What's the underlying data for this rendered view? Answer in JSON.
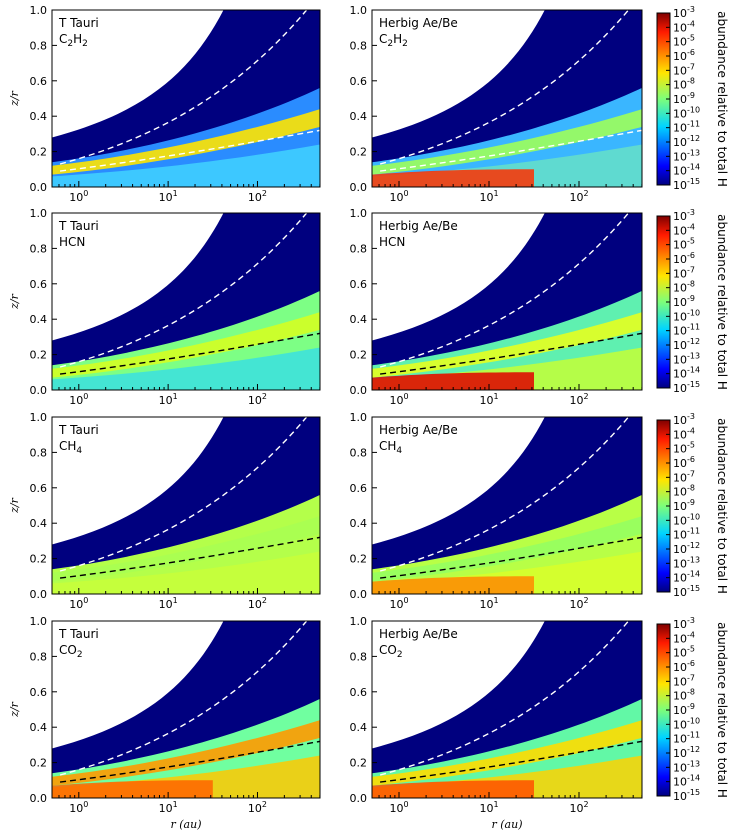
{
  "figure": {
    "x_axis_title": "r (au)",
    "y_axis_title": "z/r",
    "colorbar_title": "abundance relative to total H",
    "colorbar_ticks": [
      "10-3",
      "10-4",
      "10-5",
      "10-6",
      "10-7",
      "10-8",
      "10-9",
      "10-10",
      "10-11",
      "10-12",
      "10-13",
      "10-14",
      "10-15"
    ],
    "colors": {
      "background_dark": "#00007f",
      "dashed_upper": "#ffffff",
      "dashed_lower_dark": "#000000"
    }
  },
  "chart_data": [
    {
      "type": "heatmap",
      "panel": "row1-left",
      "title_lines": [
        "T Tauri",
        "C2H2"
      ],
      "x_ticks": [
        "10^0",
        "10^1",
        "10^2"
      ],
      "y_ticks": [
        "0.0",
        "0.2",
        "0.4",
        "0.6",
        "0.8",
        "1.0"
      ],
      "xlim_log": [
        -0.3,
        2.7
      ],
      "ylim": [
        0,
        1
      ],
      "lower_dashed_color": "#ffffff",
      "zlim_log": [
        -15,
        -3
      ]
    },
    {
      "type": "heatmap",
      "panel": "row1-right",
      "title_lines": [
        "Herbig Ae/Be",
        "C2H2"
      ],
      "x_ticks": [
        "10^0",
        "10^1",
        "10^2"
      ],
      "y_ticks": [
        "0.0",
        "0.2",
        "0.4",
        "0.6",
        "0.8",
        "1.0"
      ],
      "xlim_log": [
        -0.3,
        2.7
      ],
      "ylim": [
        0,
        1
      ],
      "lower_dashed_color": "#ffffff",
      "zlim_log": [
        -15,
        -3
      ]
    },
    {
      "type": "heatmap",
      "panel": "row2-left",
      "title_lines": [
        "T Tauri",
        "HCN"
      ],
      "x_ticks": [
        "10^0",
        "10^1",
        "10^2"
      ],
      "y_ticks": [
        "0.0",
        "0.2",
        "0.4",
        "0.6",
        "0.8",
        "1.0"
      ],
      "xlim_log": [
        -0.3,
        2.7
      ],
      "ylim": [
        0,
        1
      ],
      "lower_dashed_color": "#000000",
      "zlim_log": [
        -15,
        -3
      ]
    },
    {
      "type": "heatmap",
      "panel": "row2-right",
      "title_lines": [
        "Herbig Ae/Be",
        "HCN"
      ],
      "x_ticks": [
        "10^0",
        "10^1",
        "10^2"
      ],
      "y_ticks": [
        "0.0",
        "0.2",
        "0.4",
        "0.6",
        "0.8",
        "1.0"
      ],
      "xlim_log": [
        -0.3,
        2.7
      ],
      "ylim": [
        0,
        1
      ],
      "lower_dashed_color": "#000000",
      "zlim_log": [
        -15,
        -3
      ]
    },
    {
      "type": "heatmap",
      "panel": "row3-left",
      "title_lines": [
        "T Tauri",
        "CH4"
      ],
      "x_ticks": [
        "10^0",
        "10^1",
        "10^2"
      ],
      "y_ticks": [
        "0.0",
        "0.2",
        "0.4",
        "0.6",
        "0.8",
        "1.0"
      ],
      "xlim_log": [
        -0.3,
        2.7
      ],
      "ylim": [
        0,
        1
      ],
      "lower_dashed_color": "#000000",
      "zlim_log": [
        -15,
        -3
      ]
    },
    {
      "type": "heatmap",
      "panel": "row3-right",
      "title_lines": [
        "Herbig Ae/Be",
        "CH4"
      ],
      "x_ticks": [
        "10^0",
        "10^1",
        "10^2"
      ],
      "y_ticks": [
        "0.0",
        "0.2",
        "0.4",
        "0.6",
        "0.8",
        "1.0"
      ],
      "xlim_log": [
        -0.3,
        2.7
      ],
      "ylim": [
        0,
        1
      ],
      "lower_dashed_color": "#000000",
      "zlim_log": [
        -15,
        -3
      ]
    },
    {
      "type": "heatmap",
      "panel": "row4-left",
      "title_lines": [
        "T Tauri",
        "CO2"
      ],
      "x_ticks": [
        "10^0",
        "10^1",
        "10^2"
      ],
      "y_ticks": [
        "0.0",
        "0.2",
        "0.4",
        "0.6",
        "0.8",
        "1.0"
      ],
      "xlim_log": [
        -0.3,
        2.7
      ],
      "ylim": [
        0,
        1
      ],
      "lower_dashed_color": "#000000",
      "zlim_log": [
        -15,
        -3
      ]
    },
    {
      "type": "heatmap",
      "panel": "row4-right",
      "title_lines": [
        "Herbig Ae/Be",
        "CO2"
      ],
      "x_ticks": [
        "10^0",
        "10^1",
        "10^2"
      ],
      "y_ticks": [
        "0.0",
        "0.2",
        "0.4",
        "0.6",
        "0.8",
        "1.0"
      ],
      "xlim_log": [
        -0.3,
        2.7
      ],
      "ylim": [
        0,
        1
      ],
      "lower_dashed_color": "#000000",
      "zlim_log": [
        -15,
        -3
      ]
    }
  ]
}
